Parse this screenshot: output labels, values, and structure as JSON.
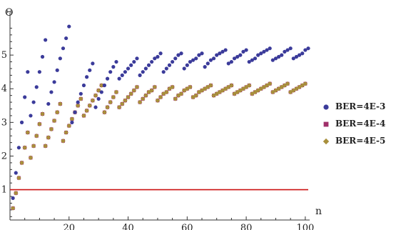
{
  "chart_data": {
    "type": "scatter",
    "title": "",
    "xlabel": "n",
    "ylabel": "Θ",
    "xlim": [
      0,
      101
    ],
    "ylim": [
      0.1,
      6
    ],
    "x_ticks": [
      20,
      40,
      60,
      80,
      100
    ],
    "y_ticks": [
      1,
      2,
      3,
      4,
      5
    ],
    "grid": false,
    "legend_position": "right",
    "reference_line": {
      "y": 1,
      "color": "#cc1111"
    },
    "series": [
      {
        "name": "BER=4E-3",
        "color": "#3b3b9a",
        "marker": "circle",
        "points": [
          [
            1,
            0.75
          ],
          [
            2,
            1.5
          ],
          [
            3,
            2.25
          ],
          [
            4,
            3.0
          ],
          [
            5,
            3.75
          ],
          [
            6,
            4.5
          ],
          [
            7,
            3.2
          ],
          [
            8,
            3.6
          ],
          [
            9,
            4.05
          ],
          [
            10,
            4.5
          ],
          [
            11,
            4.95
          ],
          [
            12,
            5.45
          ],
          [
            13,
            3.55
          ],
          [
            14,
            3.9
          ],
          [
            15,
            4.2
          ],
          [
            16,
            4.55
          ],
          [
            17,
            4.9
          ],
          [
            18,
            5.2
          ],
          [
            19,
            5.5
          ],
          [
            20,
            5.85
          ],
          [
            21,
            3.0
          ],
          [
            22,
            3.3
          ],
          [
            23,
            3.6
          ],
          [
            24,
            3.85
          ],
          [
            25,
            4.1
          ],
          [
            26,
            4.35
          ],
          [
            27,
            4.55
          ],
          [
            28,
            4.75
          ],
          [
            29,
            3.45
          ],
          [
            30,
            3.7
          ],
          [
            31,
            3.9
          ],
          [
            32,
            4.1
          ],
          [
            33,
            4.3
          ],
          [
            34,
            4.5
          ],
          [
            35,
            4.65
          ],
          [
            36,
            4.8
          ],
          [
            37,
            4.3
          ],
          [
            38,
            4.4
          ],
          [
            39,
            4.5
          ],
          [
            40,
            4.6
          ],
          [
            41,
            4.7
          ],
          [
            42,
            4.8
          ],
          [
            43,
            4.9
          ],
          [
            44,
            4.4
          ],
          [
            45,
            4.5
          ],
          [
            46,
            4.6
          ],
          [
            47,
            4.7
          ],
          [
            48,
            4.8
          ],
          [
            49,
            4.9
          ],
          [
            50,
            4.95
          ],
          [
            51,
            5.05
          ],
          [
            52,
            4.5
          ],
          [
            53,
            4.6
          ],
          [
            54,
            4.7
          ],
          [
            55,
            4.8
          ],
          [
            56,
            4.9
          ],
          [
            57,
            5.0
          ],
          [
            58,
            5.05
          ],
          [
            59,
            4.6
          ],
          [
            60,
            4.7
          ],
          [
            61,
            4.8
          ],
          [
            62,
            4.85
          ],
          [
            63,
            4.9
          ],
          [
            64,
            5.0
          ],
          [
            65,
            5.05
          ],
          [
            66,
            4.65
          ],
          [
            67,
            4.75
          ],
          [
            68,
            4.85
          ],
          [
            69,
            4.9
          ],
          [
            70,
            5.0
          ],
          [
            71,
            5.05
          ],
          [
            72,
            5.1
          ],
          [
            73,
            5.15
          ],
          [
            74,
            4.75
          ],
          [
            75,
            4.8
          ],
          [
            76,
            4.9
          ],
          [
            77,
            4.95
          ],
          [
            78,
            5.0
          ],
          [
            79,
            5.1
          ],
          [
            80,
            5.15
          ],
          [
            81,
            4.8
          ],
          [
            82,
            4.85
          ],
          [
            83,
            4.9
          ],
          [
            84,
            5.0
          ],
          [
            85,
            5.05
          ],
          [
            86,
            5.1
          ],
          [
            87,
            5.15
          ],
          [
            88,
            5.2
          ],
          [
            89,
            4.85
          ],
          [
            90,
            4.9
          ],
          [
            91,
            4.95
          ],
          [
            92,
            5.0
          ],
          [
            93,
            5.1
          ],
          [
            94,
            5.15
          ],
          [
            95,
            5.2
          ],
          [
            96,
            4.9
          ],
          [
            97,
            4.95
          ],
          [
            98,
            5.0
          ],
          [
            99,
            5.05
          ],
          [
            100,
            5.15
          ],
          [
            101,
            5.2
          ]
        ]
      },
      {
        "name": "BER=4E-4",
        "color": "#a0306a",
        "marker": "square",
        "points": [
          [
            1,
            0.45
          ],
          [
            2,
            0.9
          ],
          [
            3,
            1.35
          ],
          [
            4,
            1.8
          ],
          [
            5,
            2.25
          ],
          [
            6,
            2.7
          ],
          [
            7,
            1.95
          ],
          [
            8,
            2.3
          ],
          [
            9,
            2.6
          ],
          [
            10,
            2.95
          ],
          [
            11,
            3.25
          ],
          [
            12,
            2.3
          ],
          [
            13,
            2.55
          ],
          [
            14,
            2.8
          ],
          [
            15,
            3.05
          ],
          [
            16,
            3.3
          ],
          [
            17,
            3.55
          ],
          [
            18,
            2.45
          ],
          [
            19,
            2.7
          ],
          [
            20,
            2.9
          ],
          [
            21,
            3.1
          ],
          [
            22,
            3.3
          ],
          [
            23,
            3.5
          ],
          [
            24,
            3.7
          ],
          [
            25,
            3.2
          ],
          [
            26,
            3.35
          ],
          [
            27,
            3.5
          ],
          [
            28,
            3.65
          ],
          [
            29,
            3.8
          ],
          [
            30,
            3.95
          ],
          [
            31,
            4.1
          ],
          [
            32,
            3.3
          ],
          [
            33,
            3.45
          ],
          [
            34,
            3.6
          ],
          [
            35,
            3.75
          ],
          [
            36,
            3.9
          ],
          [
            37,
            3.45
          ],
          [
            38,
            3.55
          ],
          [
            39,
            3.65
          ],
          [
            40,
            3.75
          ],
          [
            41,
            3.85
          ],
          [
            42,
            3.95
          ],
          [
            43,
            4.05
          ],
          [
            44,
            3.6
          ],
          [
            45,
            3.7
          ],
          [
            46,
            3.8
          ],
          [
            47,
            3.9
          ],
          [
            48,
            3.95
          ],
          [
            49,
            4.05
          ],
          [
            50,
            3.65
          ],
          [
            51,
            3.75
          ],
          [
            52,
            3.85
          ],
          [
            53,
            3.9
          ],
          [
            54,
            4.0
          ],
          [
            55,
            4.05
          ],
          [
            56,
            3.7
          ],
          [
            57,
            3.8
          ],
          [
            58,
            3.85
          ],
          [
            59,
            3.95
          ],
          [
            60,
            4.0
          ],
          [
            61,
            4.05
          ],
          [
            62,
            3.75
          ],
          [
            63,
            3.8
          ],
          [
            64,
            3.9
          ],
          [
            65,
            3.95
          ],
          [
            66,
            4.0
          ],
          [
            67,
            4.05
          ],
          [
            68,
            4.1
          ],
          [
            69,
            3.8
          ],
          [
            70,
            3.85
          ],
          [
            71,
            3.9
          ],
          [
            72,
            3.95
          ],
          [
            73,
            4.0
          ],
          [
            74,
            4.05
          ],
          [
            75,
            4.1
          ],
          [
            76,
            3.85
          ],
          [
            77,
            3.9
          ],
          [
            78,
            3.95
          ],
          [
            79,
            4.0
          ],
          [
            80,
            4.05
          ],
          [
            81,
            4.1
          ],
          [
            82,
            3.85
          ],
          [
            83,
            3.9
          ],
          [
            84,
            3.95
          ],
          [
            85,
            4.0
          ],
          [
            86,
            4.05
          ],
          [
            87,
            4.1
          ],
          [
            88,
            4.15
          ],
          [
            89,
            3.9
          ],
          [
            90,
            3.95
          ],
          [
            91,
            4.0
          ],
          [
            92,
            4.05
          ],
          [
            93,
            4.1
          ],
          [
            94,
            4.15
          ],
          [
            95,
            3.9
          ],
          [
            96,
            3.95
          ],
          [
            97,
            4.0
          ],
          [
            98,
            4.05
          ],
          [
            99,
            4.1
          ],
          [
            100,
            4.15
          ]
        ]
      },
      {
        "name": "BER=4E-5",
        "color": "#a88f3c",
        "marker": "diamond",
        "points": [
          [
            1,
            0.45
          ],
          [
            2,
            0.9
          ],
          [
            3,
            1.35
          ],
          [
            4,
            1.8
          ],
          [
            5,
            2.25
          ],
          [
            6,
            2.7
          ],
          [
            7,
            1.95
          ],
          [
            8,
            2.3
          ],
          [
            9,
            2.6
          ],
          [
            10,
            2.95
          ],
          [
            11,
            3.25
          ],
          [
            12,
            2.3
          ],
          [
            13,
            2.55
          ],
          [
            14,
            2.8
          ],
          [
            15,
            3.05
          ],
          [
            16,
            3.3
          ],
          [
            17,
            3.55
          ],
          [
            18,
            2.45
          ],
          [
            19,
            2.7
          ],
          [
            20,
            2.9
          ],
          [
            21,
            3.1
          ],
          [
            22,
            3.3
          ],
          [
            23,
            3.5
          ],
          [
            24,
            3.7
          ],
          [
            25,
            3.2
          ],
          [
            26,
            3.35
          ],
          [
            27,
            3.5
          ],
          [
            28,
            3.65
          ],
          [
            29,
            3.8
          ],
          [
            30,
            3.95
          ],
          [
            31,
            4.1
          ],
          [
            32,
            3.3
          ],
          [
            33,
            3.45
          ],
          [
            34,
            3.6
          ],
          [
            35,
            3.75
          ],
          [
            36,
            3.9
          ],
          [
            37,
            3.45
          ],
          [
            38,
            3.55
          ],
          [
            39,
            3.65
          ],
          [
            40,
            3.75
          ],
          [
            41,
            3.85
          ],
          [
            42,
            3.95
          ],
          [
            43,
            4.05
          ],
          [
            44,
            3.6
          ],
          [
            45,
            3.7
          ],
          [
            46,
            3.8
          ],
          [
            47,
            3.9
          ],
          [
            48,
            3.95
          ],
          [
            49,
            4.05
          ],
          [
            50,
            3.65
          ],
          [
            51,
            3.75
          ],
          [
            52,
            3.85
          ],
          [
            53,
            3.9
          ],
          [
            54,
            4.0
          ],
          [
            55,
            4.05
          ],
          [
            56,
            3.7
          ],
          [
            57,
            3.8
          ],
          [
            58,
            3.85
          ],
          [
            59,
            3.95
          ],
          [
            60,
            4.0
          ],
          [
            61,
            4.05
          ],
          [
            62,
            3.75
          ],
          [
            63,
            3.8
          ],
          [
            64,
            3.9
          ],
          [
            65,
            3.95
          ],
          [
            66,
            4.0
          ],
          [
            67,
            4.05
          ],
          [
            68,
            4.1
          ],
          [
            69,
            3.8
          ],
          [
            70,
            3.85
          ],
          [
            71,
            3.9
          ],
          [
            72,
            3.95
          ],
          [
            73,
            4.0
          ],
          [
            74,
            4.05
          ],
          [
            75,
            4.1
          ],
          [
            76,
            3.85
          ],
          [
            77,
            3.9
          ],
          [
            78,
            3.95
          ],
          [
            79,
            4.0
          ],
          [
            80,
            4.05
          ],
          [
            81,
            4.1
          ],
          [
            82,
            3.85
          ],
          [
            83,
            3.9
          ],
          [
            84,
            3.95
          ],
          [
            85,
            4.0
          ],
          [
            86,
            4.05
          ],
          [
            87,
            4.1
          ],
          [
            88,
            4.15
          ],
          [
            89,
            3.9
          ],
          [
            90,
            3.95
          ],
          [
            91,
            4.0
          ],
          [
            92,
            4.05
          ],
          [
            93,
            4.1
          ],
          [
            94,
            4.15
          ],
          [
            95,
            3.9
          ],
          [
            96,
            3.95
          ],
          [
            97,
            4.0
          ],
          [
            98,
            4.05
          ],
          [
            99,
            4.1
          ],
          [
            100,
            4.15
          ]
        ]
      }
    ]
  }
}
